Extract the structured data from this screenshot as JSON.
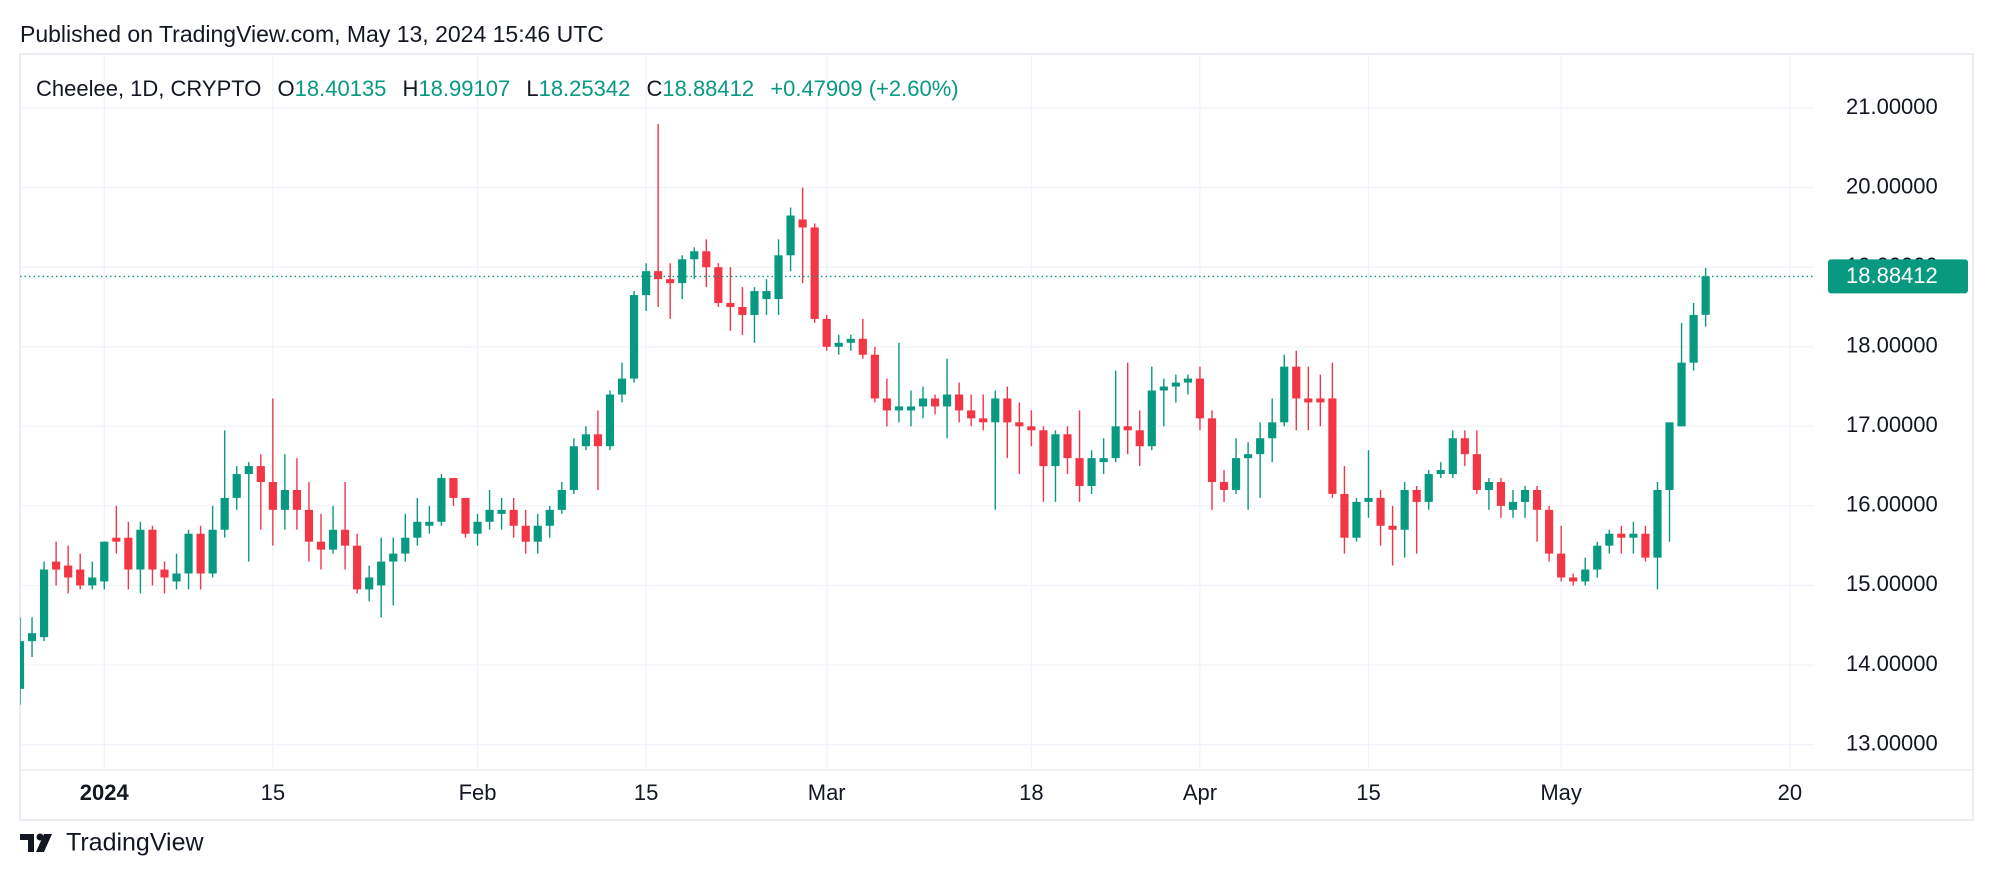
{
  "header": {
    "published": "Published on TradingView.com, May 13, 2024 15:46 UTC",
    "brand": "TradingView"
  },
  "chart_data": {
    "type": "candlestick",
    "symbol": "Cheelee, 1D, CRYPTO",
    "ohlc_labels": [
      "O",
      "H",
      "L",
      "C"
    ],
    "change": "+0.47909 (+2.60%)",
    "up_color": "#089981",
    "down_color": "#f23645",
    "x": [
      "2023-12-25",
      "2023-12-26",
      "2023-12-27",
      "2023-12-28",
      "2023-12-29",
      "2023-12-30",
      "2023-12-31",
      "2024-01-01",
      "2024-01-02",
      "2024-01-03",
      "2024-01-04",
      "2024-01-05",
      "2024-01-06",
      "2024-01-07",
      "2024-01-08",
      "2024-01-09",
      "2024-01-10",
      "2024-01-11",
      "2024-01-12",
      "2024-01-13",
      "2024-01-14",
      "2024-01-15",
      "2024-01-16",
      "2024-01-17",
      "2024-01-18",
      "2024-01-19",
      "2024-01-20",
      "2024-01-21",
      "2024-01-22",
      "2024-01-23",
      "2024-01-24",
      "2024-01-25",
      "2024-01-26",
      "2024-01-27",
      "2024-01-28",
      "2024-01-29",
      "2024-01-30",
      "2024-01-31",
      "2024-02-01",
      "2024-02-02",
      "2024-02-03",
      "2024-02-04",
      "2024-02-05",
      "2024-02-06",
      "2024-02-07",
      "2024-02-08",
      "2024-02-09",
      "2024-02-10",
      "2024-02-11",
      "2024-02-12",
      "2024-02-13",
      "2024-02-14",
      "2024-02-15",
      "2024-02-16",
      "2024-02-17",
      "2024-02-18",
      "2024-02-19",
      "2024-02-20",
      "2024-02-21",
      "2024-02-22",
      "2024-02-23",
      "2024-02-24",
      "2024-02-25",
      "2024-02-26",
      "2024-02-27",
      "2024-02-28",
      "2024-02-29",
      "2024-03-01",
      "2024-03-02",
      "2024-03-03",
      "2024-03-04",
      "2024-03-05",
      "2024-03-06",
      "2024-03-07",
      "2024-03-08",
      "2024-03-09",
      "2024-03-10",
      "2024-03-11",
      "2024-03-12",
      "2024-03-13",
      "2024-03-14",
      "2024-03-15",
      "2024-03-16",
      "2024-03-17",
      "2024-03-18",
      "2024-03-19",
      "2024-03-20",
      "2024-03-21",
      "2024-03-22",
      "2024-03-23",
      "2024-03-24",
      "2024-03-25",
      "2024-03-26",
      "2024-03-27",
      "2024-03-28",
      "2024-03-29",
      "2024-03-30",
      "2024-03-31",
      "2024-04-01",
      "2024-04-02",
      "2024-04-03",
      "2024-04-04",
      "2024-04-05",
      "2024-04-06",
      "2024-04-07",
      "2024-04-08",
      "2024-04-09",
      "2024-04-10",
      "2024-04-11",
      "2024-04-12",
      "2024-04-13",
      "2024-04-14",
      "2024-04-15",
      "2024-04-16",
      "2024-04-17",
      "2024-04-18",
      "2024-04-19",
      "2024-04-20",
      "2024-04-21",
      "2024-04-22",
      "2024-04-23",
      "2024-04-24",
      "2024-04-25",
      "2024-04-26",
      "2024-04-27",
      "2024-04-28",
      "2024-04-29",
      "2024-04-30",
      "2024-05-01",
      "2024-05-02",
      "2024-05-03",
      "2024-05-04",
      "2024-05-05",
      "2024-05-06",
      "2024-05-07",
      "2024-05-08",
      "2024-05-09",
      "2024-05-10",
      "2024-05-11",
      "2024-05-12",
      "2024-05-13"
    ],
    "open": [
      13.7,
      14.3,
      14.35,
      15.3,
      15.25,
      15.2,
      15.0,
      15.05,
      15.6,
      15.6,
      15.2,
      15.7,
      15.2,
      15.05,
      15.15,
      15.65,
      15.15,
      15.7,
      16.1,
      16.4,
      16.5,
      16.3,
      15.95,
      16.2,
      15.95,
      15.55,
      15.45,
      15.7,
      15.5,
      14.95,
      15.0,
      15.3,
      15.4,
      15.6,
      15.75,
      15.8,
      16.35,
      16.1,
      15.65,
      15.8,
      15.9,
      15.95,
      15.75,
      15.55,
      15.75,
      15.95,
      16.2,
      16.75,
      16.9,
      16.75,
      17.4,
      17.6,
      18.65,
      18.95,
      18.85,
      18.8,
      19.1,
      19.2,
      19.0,
      18.55,
      18.5,
      18.4,
      18.6,
      18.6,
      19.15,
      19.6,
      19.5,
      18.35,
      18.0,
      18.05,
      18.1,
      17.9,
      17.35,
      17.2,
      17.2,
      17.25,
      17.35,
      17.25,
      17.4,
      17.2,
      17.1,
      17.05,
      17.35,
      17.05,
      17.0,
      16.95,
      16.5,
      16.9,
      16.6,
      16.25,
      16.55,
      16.6,
      17.0,
      16.95,
      16.75,
      17.45,
      17.5,
      17.55,
      17.6,
      17.1,
      16.3,
      16.2,
      16.6,
      16.65,
      16.85,
      17.05,
      17.75,
      17.35,
      17.35,
      17.35,
      16.15,
      15.6,
      16.05,
      16.1,
      15.75,
      15.7,
      16.2,
      16.05,
      16.4,
      16.4,
      16.85,
      16.65,
      16.2,
      16.3,
      15.95,
      16.05,
      16.2,
      15.95,
      15.4,
      15.1,
      15.05,
      15.2,
      15.5,
      15.65,
      15.6,
      15.65,
      15.35,
      16.2,
      17.0,
      17.8,
      18.40135
    ],
    "high": [
      14.6,
      14.6,
      15.3,
      15.55,
      15.5,
      15.4,
      15.3,
      15.55,
      16.0,
      15.8,
      15.8,
      15.75,
      15.3,
      15.4,
      15.7,
      15.75,
      16.0,
      16.95,
      16.5,
      16.55,
      16.65,
      17.35,
      16.65,
      16.6,
      16.3,
      15.9,
      16.0,
      16.3,
      15.65,
      15.25,
      15.6,
      15.6,
      15.9,
      16.1,
      16.0,
      16.4,
      16.35,
      16.1,
      15.9,
      16.2,
      16.1,
      16.1,
      15.95,
      15.9,
      16.0,
      16.3,
      16.85,
      17.0,
      17.2,
      17.45,
      17.8,
      18.7,
      19.05,
      20.8,
      19.05,
      19.15,
      19.25,
      19.35,
      19.05,
      19.0,
      18.75,
      18.75,
      18.85,
      19.35,
      19.75,
      20.0,
      19.55,
      18.4,
      18.15,
      18.15,
      18.35,
      18.0,
      17.6,
      18.05,
      17.45,
      17.5,
      17.4,
      17.85,
      17.55,
      17.4,
      17.4,
      17.45,
      17.5,
      17.3,
      17.2,
      17.0,
      16.95,
      17.0,
      17.2,
      16.7,
      16.85,
      17.7,
      17.8,
      17.2,
      17.75,
      17.6,
      17.65,
      17.65,
      17.75,
      17.2,
      16.45,
      16.85,
      16.8,
      17.05,
      17.35,
      17.9,
      17.95,
      17.75,
      17.65,
      17.8,
      16.5,
      16.1,
      16.7,
      16.2,
      16.0,
      16.3,
      16.25,
      16.45,
      16.55,
      16.95,
      16.95,
      16.95,
      16.35,
      16.35,
      16.2,
      16.25,
      16.25,
      16.0,
      15.75,
      15.15,
      15.35,
      15.55,
      15.7,
      15.75,
      15.8,
      15.75,
      16.3,
      17.05,
      18.3,
      18.55,
      18.99107
    ],
    "low": [
      13.5,
      14.1,
      14.3,
      15.0,
      14.9,
      14.95,
      14.95,
      14.95,
      15.4,
      14.95,
      14.9,
      15.0,
      14.9,
      14.95,
      14.95,
      14.95,
      15.1,
      15.6,
      15.95,
      15.3,
      15.7,
      15.5,
      15.7,
      15.7,
      15.3,
      15.2,
      15.4,
      15.2,
      14.9,
      14.8,
      14.6,
      14.75,
      15.3,
      15.5,
      15.65,
      15.75,
      16.0,
      15.6,
      15.5,
      15.7,
      15.7,
      15.6,
      15.4,
      15.4,
      15.6,
      15.9,
      16.15,
      16.7,
      16.2,
      16.7,
      17.3,
      17.55,
      18.45,
      18.5,
      18.35,
      18.6,
      18.85,
      18.75,
      18.5,
      18.2,
      18.15,
      18.05,
      18.4,
      18.4,
      18.95,
      18.8,
      18.3,
      17.95,
      17.9,
      17.95,
      17.85,
      17.3,
      17.0,
      17.05,
      17.0,
      17.1,
      17.15,
      16.85,
      17.05,
      17.0,
      16.95,
      15.95,
      16.6,
      16.4,
      16.75,
      16.05,
      16.05,
      16.4,
      16.05,
      16.15,
      16.4,
      16.55,
      16.65,
      16.5,
      16.7,
      17.0,
      17.3,
      17.4,
      16.95,
      15.95,
      16.05,
      16.15,
      15.95,
      16.1,
      16.55,
      17.0,
      16.95,
      16.95,
      17.0,
      16.1,
      15.4,
      15.55,
      15.85,
      15.5,
      15.25,
      15.35,
      15.4,
      15.95,
      16.35,
      16.35,
      16.5,
      16.15,
      15.95,
      15.85,
      15.85,
      15.85,
      15.55,
      15.3,
      15.05,
      15.0,
      15.0,
      15.1,
      15.4,
      15.4,
      15.4,
      15.3,
      14.95,
      15.55,
      17.0,
      17.7,
      18.25342
    ],
    "close": [
      14.3,
      14.4,
      15.2,
      15.2,
      15.1,
      15.0,
      15.1,
      15.55,
      15.55,
      15.2,
      15.7,
      15.2,
      15.1,
      15.15,
      15.65,
      15.15,
      15.7,
      16.1,
      16.4,
      16.5,
      16.3,
      15.95,
      16.2,
      15.95,
      15.55,
      15.45,
      15.7,
      15.5,
      14.95,
      15.1,
      15.3,
      15.4,
      15.6,
      15.8,
      15.8,
      16.35,
      16.1,
      15.65,
      15.8,
      15.95,
      15.95,
      15.75,
      15.55,
      15.75,
      15.95,
      16.2,
      16.75,
      16.9,
      16.75,
      17.4,
      17.6,
      18.65,
      18.95,
      18.85,
      18.8,
      19.1,
      19.2,
      19.0,
      18.55,
      18.5,
      18.4,
      18.7,
      18.7,
      19.15,
      19.65,
      19.5,
      18.35,
      18.0,
      18.05,
      18.1,
      17.9,
      17.35,
      17.2,
      17.25,
      17.25,
      17.35,
      17.25,
      17.4,
      17.2,
      17.1,
      17.05,
      17.35,
      17.05,
      17.0,
      16.95,
      16.5,
      16.9,
      16.6,
      16.25,
      16.6,
      16.6,
      17.0,
      16.95,
      16.75,
      17.45,
      17.5,
      17.55,
      17.6,
      17.1,
      16.3,
      16.2,
      16.6,
      16.65,
      16.85,
      17.05,
      17.75,
      17.35,
      17.3,
      17.3,
      16.15,
      15.6,
      16.05,
      16.1,
      15.75,
      15.7,
      16.2,
      16.05,
      16.4,
      16.45,
      16.85,
      16.65,
      16.2,
      16.3,
      16.0,
      16.05,
      16.2,
      15.95,
      15.4,
      15.1,
      15.05,
      15.2,
      15.5,
      15.65,
      15.6,
      15.65,
      15.35,
      16.2,
      17.05,
      17.8,
      18.4,
      18.88412
    ],
    "xlim": [
      "2023-12-25",
      "2024-05-22"
    ],
    "xticks": [
      {
        "value": "2024-01-01",
        "label": "2024"
      },
      {
        "value": "2024-01-15",
        "label": "15"
      },
      {
        "value": "2024-02-01",
        "label": "Feb"
      },
      {
        "value": "2024-02-15",
        "label": "15"
      },
      {
        "value": "2024-03-01",
        "label": "Mar"
      },
      {
        "value": "2024-03-18",
        "label": "18"
      },
      {
        "value": "2024-04-01",
        "label": "Apr"
      },
      {
        "value": "2024-04-15",
        "label": "15"
      },
      {
        "value": "2024-05-01",
        "label": "May"
      },
      {
        "value": "2024-05-20",
        "label": "20"
      }
    ],
    "ylim": [
      12.68,
      21.68
    ],
    "yticks": [
      {
        "value": 13,
        "label": "13.00000"
      },
      {
        "value": 14,
        "label": "14.00000"
      },
      {
        "value": 15,
        "label": "15.00000"
      },
      {
        "value": 16,
        "label": "16.00000"
      },
      {
        "value": 17,
        "label": "17.00000"
      },
      {
        "value": 18,
        "label": "18.00000"
      },
      {
        "value": 19,
        "label": "19.00000"
      },
      {
        "value": 20,
        "label": "20.00000"
      },
      {
        "value": 21,
        "label": "21.00000"
      }
    ],
    "grid": true
  }
}
